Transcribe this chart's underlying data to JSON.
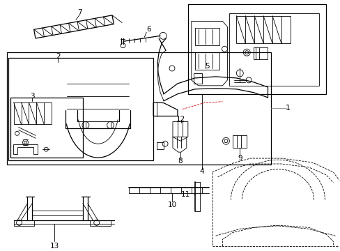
{
  "bg_color": "#ffffff",
  "line_color": "#000000",
  "red_color": "#cc0000",
  "gray_color": "#888888",
  "fig_w": 4.89,
  "fig_h": 3.6,
  "dpi": 100
}
